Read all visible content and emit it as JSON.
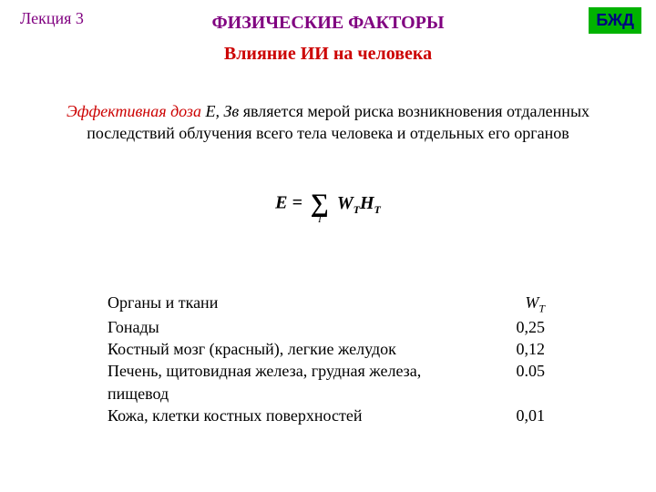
{
  "header": {
    "lecture": "Лекция 3",
    "badge": "БЖД",
    "title": "ФИЗИЧЕСКИЕ ФАКТОРЫ",
    "subtitle": "Влияние ИИ на человека"
  },
  "definition": {
    "term": "Эффективная доза",
    "symbol": " Е, Зв",
    "rest": "   является мерой риска возникновения отдаленных последствий облучения всего тела человека и отдельных его органов"
  },
  "formula": {
    "lhs": "Е =",
    "sum_index": "T",
    "rhs_w": "W",
    "rhs_w_sub": "T",
    "rhs_h": "H",
    "rhs_h_sub": "T"
  },
  "table": {
    "header_label": "Органы и ткани",
    "header_symbol_base": "W",
    "header_symbol_sub": "T",
    "rows": [
      {
        "organ": "Гонады",
        "value": "0,25"
      },
      {
        "organ": "Костный мозг (красный), легкие желудок",
        "value": "0,12"
      },
      {
        "organ": "Печень, щитовидная железа, грудная железа, пищевод",
        "value": "0.05"
      },
      {
        "organ": "Кожа, клетки костных поверхностей",
        "value": "0,01"
      }
    ]
  },
  "colors": {
    "accent_purple": "#800080",
    "accent_red": "#cc0000",
    "badge_bg": "#00b300",
    "badge_text": "#000080",
    "text": "#000000",
    "background": "#ffffff"
  }
}
